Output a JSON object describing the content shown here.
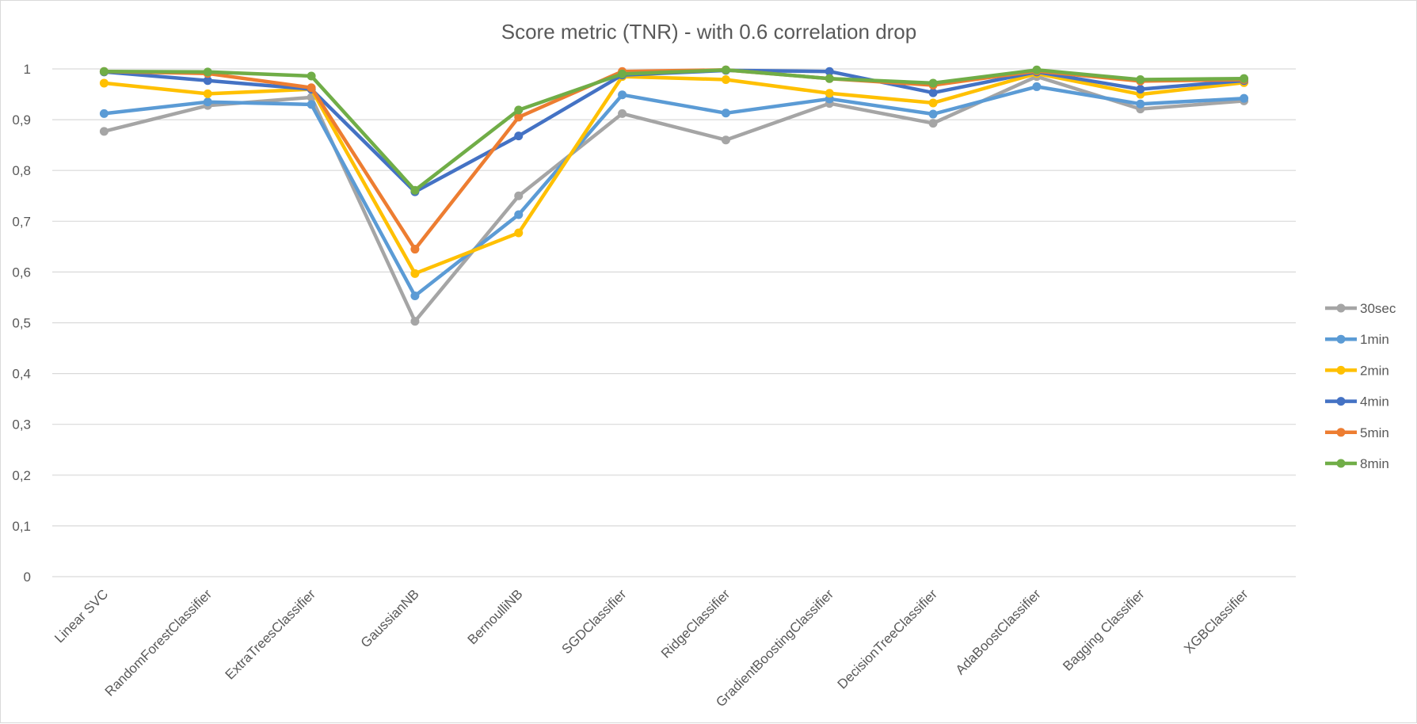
{
  "chart_data": {
    "type": "line",
    "title": "Score metric (TNR) - with 0.6 correlation drop",
    "xlabel": "",
    "ylabel": "",
    "ylim": [
      0,
      1
    ],
    "yticks": [
      "0",
      "0,1",
      "0,2",
      "0,3",
      "0,4",
      "0,5",
      "0,6",
      "0,7",
      "0,8",
      "0,9",
      "1"
    ],
    "grid": true,
    "legend_position": "right",
    "categories": [
      "Linear SVC",
      "RandomForestClassifier",
      "ExtraTreesClassifier",
      "GaussianNB",
      "BernoulliNB",
      "SGDClassifier",
      "RidgeClassifier",
      "GradientBoostingClassifier",
      "DecisionTreeClassifier",
      "AdaBoostClassifier",
      "Bagging Classifier",
      "XGBClassifier"
    ],
    "series": [
      {
        "name": "30sec",
        "color": "#a5a5a5",
        "values": [
          0.877,
          0.928,
          0.944,
          0.503,
          0.75,
          0.912,
          0.86,
          0.932,
          0.893,
          0.985,
          0.921,
          0.937
        ]
      },
      {
        "name": "1min",
        "color": "#5b9bd5",
        "values": [
          0.912,
          0.935,
          0.93,
          0.553,
          0.713,
          0.949,
          0.913,
          0.941,
          0.911,
          0.965,
          0.931,
          0.942
        ]
      },
      {
        "name": "2min",
        "color": "#ffc000",
        "values": [
          0.972,
          0.951,
          0.96,
          0.597,
          0.677,
          0.985,
          0.979,
          0.952,
          0.933,
          0.991,
          0.95,
          0.973
        ]
      },
      {
        "name": "4min",
        "color": "#4472c4",
        "values": [
          0.994,
          0.977,
          0.96,
          0.758,
          0.868,
          0.988,
          0.997,
          0.995,
          0.953,
          0.994,
          0.96,
          0.977
        ]
      },
      {
        "name": "5min",
        "color": "#ed7d31",
        "values": [
          0.995,
          0.991,
          0.963,
          0.645,
          0.905,
          0.995,
          0.998,
          0.981,
          0.968,
          0.996,
          0.976,
          0.979
        ]
      },
      {
        "name": "8min",
        "color": "#70ad47",
        "values": [
          0.995,
          0.994,
          0.986,
          0.761,
          0.919,
          0.99,
          0.998,
          0.981,
          0.972,
          0.998,
          0.979,
          0.981
        ]
      }
    ]
  }
}
